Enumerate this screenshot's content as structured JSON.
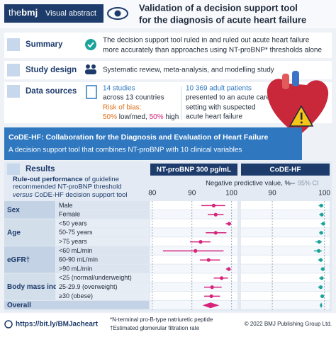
{
  "header": {
    "brand_the": "the",
    "brand_bmj": "bmj",
    "section": "Visual abstract",
    "title": [
      "Validation of a decision support tool",
      "for the diagnosis of acute heart failure"
    ]
  },
  "summary": {
    "label": "Summary",
    "text": [
      "The decision support tool ruled in and ruled out acute heart failure",
      "more accurately than approaches using NT-proBNP* thresholds alone"
    ]
  },
  "study_design": {
    "label": "Study design",
    "text": "Systematic review, meta-analysis, and modelling study"
  },
  "data_sources": {
    "label": "Data sources",
    "studies": {
      "count": "14 studies",
      "text": "across 13 countries",
      "risk": "Risk of bias:",
      "low_pct": "50%",
      "low_text": " low/med, ",
      "high_pct": "50%",
      "high_text": " high"
    },
    "patients": {
      "count": "10 369 adult patients",
      "text": [
        "presented to an acute care",
        "setting with suspected",
        "acute heart failure"
      ]
    }
  },
  "banner": {
    "title": "CoDE-HF: Collaboration for the Diagnosis and Evaluation of Heart Failure",
    "subtitle": "A decision support tool that combines NT-proBNP with 10 clinical variables"
  },
  "results": {
    "label": "Results",
    "heading": {
      "bold": "Rule-out performance",
      "rest1": " of guideline",
      "line2": "recommended NT-proBNP threshold",
      "italic": "versus",
      "rest3": " CoDE-HF decision support tool"
    }
  },
  "chart_data": {
    "type": "forest",
    "x_label": "Negative predictive value, %",
    "ci_label": "95% CI",
    "groups": [
      {
        "name": "Sex",
        "categories": [
          "Male",
          "Female"
        ]
      },
      {
        "name": "Age",
        "categories": [
          "<50 years",
          "50-75 years",
          ">75 years"
        ]
      },
      {
        "name": "eGFR†",
        "categories": [
          "<60 mL/min",
          "60-90 mL/min",
          ">90 mL/min"
        ]
      },
      {
        "name": "Body mass index",
        "categories": [
          "<25 (normal/underweight)",
          "25-29.9 (overweight)",
          "≥30 (obese)"
        ]
      },
      {
        "name": "Overall",
        "categories": [
          null
        ]
      }
    ],
    "panels": [
      {
        "name": "NT-proBNP 300 pg/mL",
        "color": "#d6247b",
        "xlim": [
          79.5,
          101.5
        ],
        "xticks": [
          80,
          90,
          100
        ],
        "values": [
          95.5,
          96.0,
          99.4,
          96.0,
          92.2,
          90.9,
          94.2,
          99.3,
          97.5,
          95.1,
          94.9,
          94.7
        ],
        "ci_low": [
          92.4,
          94.0,
          98.5,
          93.5,
          89.5,
          82.7,
          92.0,
          98.6,
          95.5,
          93.1,
          93.1,
          92.7
        ],
        "ci_high": [
          98.4,
          98.0,
          99.9,
          98.7,
          94.7,
          98.0,
          97.1,
          99.8,
          99.1,
          97.5,
          97.1,
          96.9
        ]
      },
      {
        "name": "CoDE-HF",
        "color": "#1aa39a",
        "xlim": [
          84,
          101
        ],
        "xticks": [
          90,
          100
        ],
        "values": [
          99.4,
          99.5,
          99.8,
          99.4,
          99.0,
          98.9,
          99.3,
          99.7,
          99.5,
          99.3,
          99.6,
          99.4
        ],
        "ci_low": [
          98.9,
          99.0,
          99.3,
          99.0,
          98.3,
          98.0,
          98.8,
          99.3,
          99.0,
          98.8,
          99.2,
          99.1
        ],
        "ci_high": [
          99.8,
          99.8,
          100,
          99.7,
          99.5,
          99.5,
          99.7,
          99.9,
          99.8,
          99.6,
          99.8,
          99.6
        ]
      }
    ]
  },
  "footer": {
    "link": "https://bit.ly/BMJacheart",
    "notes": [
      "*N-terminal pro-B-type natriuretic peptide",
      "†Estimated glomerular filtration rate"
    ],
    "copyright": "© 2022 BMJ Publishing Group Ltd."
  }
}
